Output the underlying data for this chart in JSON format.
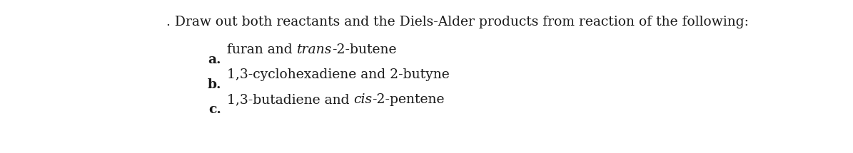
{
  "title_prefix": ". ",
  "title_text": "Draw out both reactants and the Diels-Alder products from reaction of the following:",
  "items": [
    {
      "label": "a.",
      "parts": [
        {
          "text": "furan and ",
          "italic": false,
          "bold": false
        },
        {
          "text": "trans",
          "italic": true,
          "bold": false
        },
        {
          "text": "-2-butene",
          "italic": false,
          "bold": false
        }
      ]
    },
    {
      "label": "b.",
      "parts": [
        {
          "text": "1,3-cyclohexadiene and 2-butyne",
          "italic": false,
          "bold": false
        }
      ]
    },
    {
      "label": "c.",
      "parts": [
        {
          "text": "1,3-butadiene and ",
          "italic": false,
          "bold": false
        },
        {
          "text": "cis",
          "italic": true,
          "bold": false
        },
        {
          "text": "-2-pentene",
          "italic": false,
          "bold": false
        }
      ]
    }
  ],
  "background_color": "#ffffff",
  "text_color": "#1a1a1a",
  "title_fontsize": 13.5,
  "item_fontsize": 13.5,
  "fig_width": 11.95,
  "fig_height": 2.15
}
